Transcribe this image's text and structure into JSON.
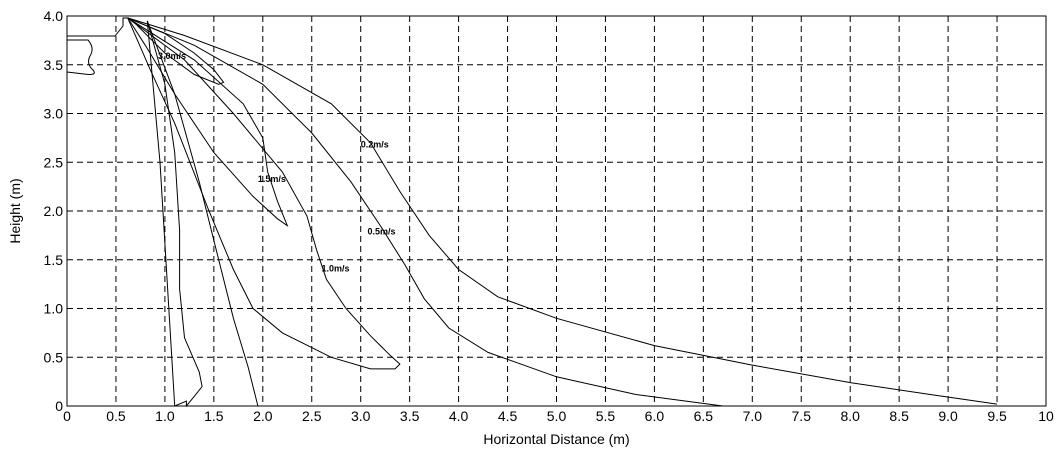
{
  "chart_data": {
    "type": "line",
    "title": "",
    "xlabel": "Horizontal Distance (m)",
    "ylabel": "Height (m)",
    "xlim": [
      0,
      10
    ],
    "ylim": [
      0,
      4
    ],
    "x_ticks": [
      "0",
      "0.5",
      "1.0",
      "1.5",
      "2.0",
      "2.5",
      "3.0",
      "3.5",
      "4.0",
      "4.5",
      "5.0",
      "5.5",
      "6.0",
      "6.5",
      "7.0",
      "7.5",
      "8.0",
      "8.5",
      "9.0",
      "9.5",
      "10"
    ],
    "y_ticks": [
      "0",
      "0.5",
      "1.0",
      "1.5",
      "2.0",
      "2.5",
      "3.0",
      "3.5",
      "4.0"
    ],
    "grid": true,
    "series": [
      {
        "name": "0.2m/s",
        "x": [
          0.62,
          1.2,
          2.0,
          2.7,
          3.1,
          3.4,
          3.7,
          4.0,
          4.4,
          5.0,
          6.0,
          7.0,
          8.0,
          8.8,
          9.5
        ],
        "y": [
          3.98,
          3.8,
          3.5,
          3.1,
          2.7,
          2.2,
          1.75,
          1.4,
          1.12,
          0.9,
          0.62,
          0.42,
          0.24,
          0.12,
          0.02
        ]
      },
      {
        "name": "0.5m/s",
        "x": [
          0.62,
          1.3,
          2.0,
          2.5,
          2.9,
          3.2,
          3.45,
          3.65,
          3.9,
          4.3,
          5.0,
          5.8,
          6.4,
          6.7
        ],
        "y": [
          3.98,
          3.7,
          3.3,
          2.8,
          2.3,
          1.85,
          1.45,
          1.1,
          0.8,
          0.55,
          0.3,
          0.12,
          0.04,
          0.0
        ]
      },
      {
        "name": "1.0m/s",
        "x": [
          0.62,
          1.2,
          1.7,
          2.2,
          2.45,
          2.55,
          2.65,
          2.85,
          3.1,
          3.3,
          3.4,
          3.35,
          3.1,
          2.7,
          2.2,
          1.9,
          1.7,
          1.45,
          1.1,
          0.85,
          0.62
        ],
        "y": [
          3.98,
          3.55,
          3.0,
          2.4,
          1.95,
          1.6,
          1.3,
          1.0,
          0.72,
          0.52,
          0.43,
          0.38,
          0.38,
          0.5,
          0.75,
          1.0,
          1.4,
          2.0,
          2.9,
          3.45,
          3.98
        ]
      },
      {
        "name": "1.5m/s",
        "x": [
          0.62,
          1.3,
          1.8,
          2.0,
          2.05,
          2.15,
          2.25,
          2.15,
          1.9,
          1.5,
          1.1,
          0.8,
          0.62
        ],
        "y": [
          3.98,
          3.55,
          3.1,
          2.75,
          2.4,
          2.1,
          1.85,
          1.92,
          2.15,
          2.6,
          3.2,
          3.7,
          3.98
        ]
      },
      {
        "name": "3.0m/s",
        "x": [
          0.62,
          1.0,
          1.3,
          1.5,
          1.6,
          1.55,
          1.3,
          1.0,
          0.7,
          0.62
        ],
        "y": [
          3.98,
          3.82,
          3.62,
          3.45,
          3.32,
          3.3,
          3.4,
          3.62,
          3.92,
          3.98
        ]
      },
      {
        "name": "",
        "x": [
          0.82,
          1.0,
          1.1,
          1.15,
          1.15,
          1.2,
          1.35,
          1.38,
          1.3,
          1.22,
          1.22,
          1.1,
          0.95,
          0.82
        ],
        "y": [
          3.95,
          3.3,
          2.6,
          1.8,
          1.2,
          0.7,
          0.35,
          0.2,
          0.1,
          0.0,
          0.05,
          0.0,
          2.5,
          3.95
        ]
      },
      {
        "name": "",
        "x": [
          0.82,
          1.1,
          1.35,
          1.55,
          1.7,
          1.85,
          1.95
        ],
        "y": [
          3.95,
          3.2,
          2.3,
          1.5,
          0.9,
          0.4,
          0.0
        ]
      }
    ],
    "labels": [
      "0.2m/s",
      "0.5m/s",
      "1.0m/s",
      "1.5m/s",
      "3.0m/s"
    ]
  }
}
